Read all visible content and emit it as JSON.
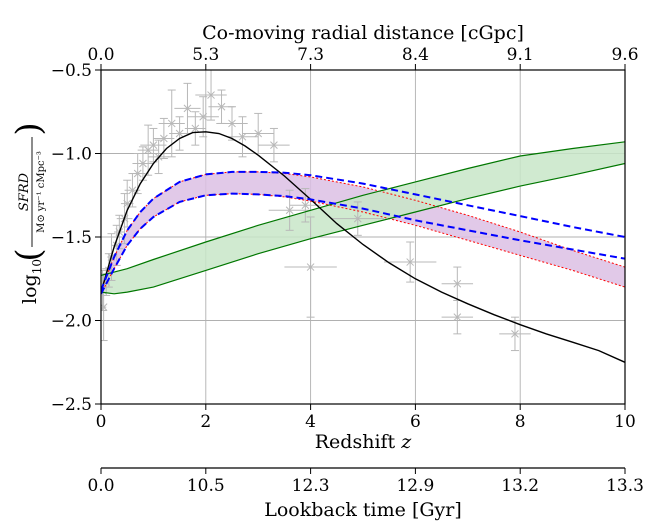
{
  "chart_data": {
    "type": "line",
    "grid": true,
    "xlim": [
      0,
      10
    ],
    "ylim": [
      -2.5,
      -0.5
    ],
    "xlabel": {
      "main": "Redshift ",
      "var": "z"
    },
    "ylabel": {
      "pre": "log",
      "sub": "10",
      "num": "SFRD",
      "den": "M⊙ yr⁻¹ cMpc⁻³"
    },
    "x_ticks": [
      0,
      2,
      4,
      6,
      8,
      10
    ],
    "x_tick_labels": [
      "0",
      "2",
      "4",
      "6",
      "8",
      "10"
    ],
    "y_ticks": [
      -2.5,
      -2.0,
      -1.5,
      -1.0,
      -0.5
    ],
    "y_tick_labels": [
      "−2.5",
      "−2.0",
      "−1.5",
      "−1.0",
      "−0.5"
    ],
    "top_axis": {
      "label": "Co-moving radial distance [cGpc]",
      "ticks": [
        0,
        2,
        4,
        6,
        8,
        10
      ],
      "tick_labels": [
        "0.0",
        "5.3",
        "7.3",
        "8.4",
        "9.1",
        "9.6"
      ]
    },
    "bottom_axis2": {
      "label": "Lookback time [Gyr]",
      "ticks": [
        0,
        2,
        4,
        6,
        8,
        10
      ],
      "tick_labels": [
        "0.0",
        "10.5",
        "12.3",
        "12.9",
        "13.2",
        "13.3"
      ]
    },
    "series": [
      {
        "style": "solid",
        "color": "#000000",
        "x": [
          0,
          0.25,
          0.5,
          0.75,
          1,
          1.25,
          1.5,
          1.75,
          2,
          2.25,
          2.5,
          2.75,
          3,
          3.5,
          4,
          4.5,
          5,
          5.5,
          6,
          6.5,
          7,
          7.5,
          8,
          8.5,
          9,
          9.5,
          10
        ],
        "y": [
          -1.83,
          -1.56,
          -1.34,
          -1.18,
          -1.06,
          -0.97,
          -0.91,
          -0.875,
          -0.87,
          -0.88,
          -0.91,
          -0.955,
          -1.01,
          -1.135,
          -1.275,
          -1.42,
          -1.545,
          -1.655,
          -1.75,
          -1.83,
          -1.9,
          -1.965,
          -2.025,
          -2.08,
          -2.13,
          -2.18,
          -2.25
        ]
      },
      {
        "style": "band",
        "fill": "#dcc0e4",
        "edge": "#ff0000",
        "x": [
          0,
          0.25,
          0.5,
          0.75,
          1,
          1.5,
          2,
          2.5,
          3,
          3.5,
          4,
          5,
          6,
          7,
          8,
          9,
          10
        ],
        "upper": [
          -1.82,
          -1.62,
          -1.46,
          -1.35,
          -1.27,
          -1.17,
          -1.125,
          -1.11,
          -1.11,
          -1.12,
          -1.14,
          -1.2,
          -1.28,
          -1.37,
          -1.47,
          -1.58,
          -1.68
        ],
        "lower": [
          -1.84,
          -1.69,
          -1.55,
          -1.45,
          -1.38,
          -1.29,
          -1.25,
          -1.24,
          -1.245,
          -1.26,
          -1.285,
          -1.35,
          -1.43,
          -1.52,
          -1.61,
          -1.7,
          -1.8
        ]
      },
      {
        "style": "dashed",
        "color": "#0000ff",
        "x": [
          0,
          0.25,
          0.5,
          0.75,
          1,
          1.5,
          2,
          2.5,
          3,
          3.5,
          4,
          5,
          6,
          7,
          8,
          9,
          10
        ],
        "y": [
          -1.82,
          -1.62,
          -1.46,
          -1.35,
          -1.27,
          -1.17,
          -1.125,
          -1.11,
          -1.11,
          -1.115,
          -1.13,
          -1.18,
          -1.245,
          -1.31,
          -1.375,
          -1.44,
          -1.5
        ]
      },
      {
        "style": "dashed",
        "color": "#0000ff",
        "x": [
          0,
          0.25,
          0.5,
          0.75,
          1,
          1.5,
          2,
          2.5,
          3,
          3.5,
          4,
          5,
          6,
          7,
          8,
          9,
          10
        ],
        "y": [
          -1.84,
          -1.69,
          -1.55,
          -1.45,
          -1.38,
          -1.29,
          -1.25,
          -1.24,
          -1.245,
          -1.255,
          -1.275,
          -1.33,
          -1.4,
          -1.46,
          -1.52,
          -1.575,
          -1.63
        ]
      },
      {
        "style": "band",
        "fill": "#c8e6c8",
        "edge": "#007700",
        "x": [
          0,
          0.25,
          0.5,
          1,
          2,
          3,
          4,
          5,
          6,
          7,
          8,
          9,
          10
        ],
        "upper": [
          -1.73,
          -1.71,
          -1.69,
          -1.635,
          -1.53,
          -1.43,
          -1.34,
          -1.25,
          -1.17,
          -1.09,
          -1.015,
          -0.97,
          -0.93
        ],
        "lower": [
          -1.83,
          -1.84,
          -1.83,
          -1.8,
          -1.7,
          -1.6,
          -1.51,
          -1.43,
          -1.35,
          -1.27,
          -1.195,
          -1.13,
          -1.06
        ]
      }
    ],
    "observations": {
      "color": "#b8b8b8",
      "points": [
        {
          "x": 0.03,
          "y": -1.82,
          "xerr": 0.03,
          "yerr": 0.12
        },
        {
          "x": 0.05,
          "y": -1.92,
          "xerr": 0.05,
          "yerr": 0.2
        },
        {
          "x": 0.1,
          "y": -1.77,
          "xerr": 0.06,
          "yerr": 0.08
        },
        {
          "x": 0.15,
          "y": -1.7,
          "xerr": 0.05,
          "yerr": 0.1
        },
        {
          "x": 0.2,
          "y": -1.62,
          "xerr": 0.08,
          "yerr": 0.14
        },
        {
          "x": 0.3,
          "y": -1.55,
          "xerr": 0.1,
          "yerr": 0.12
        },
        {
          "x": 0.35,
          "y": -1.47,
          "xerr": 0.1,
          "yerr": 0.1
        },
        {
          "x": 0.45,
          "y": -1.39,
          "xerr": 0.15,
          "yerr": 0.15
        },
        {
          "x": 0.5,
          "y": -1.3,
          "xerr": 0.12,
          "yerr": 0.14
        },
        {
          "x": 0.6,
          "y": -1.22,
          "xerr": 0.15,
          "yerr": 0.1
        },
        {
          "x": 0.7,
          "y": -1.12,
          "xerr": 0.15,
          "yerr": 0.12
        },
        {
          "x": 0.8,
          "y": -1.06,
          "xerr": 0.2,
          "yerr": 0.1
        },
        {
          "x": 0.9,
          "y": -0.98,
          "xerr": 0.2,
          "yerr": 0.15
        },
        {
          "x": 1.0,
          "y": -0.95,
          "xerr": 0.25,
          "yerr": 0.1
        },
        {
          "x": 1.1,
          "y": -1.02,
          "xerr": 0.2,
          "yerr": 0.1
        },
        {
          "x": 1.2,
          "y": -0.91,
          "xerr": 0.2,
          "yerr": 0.12
        },
        {
          "x": 1.35,
          "y": -0.82,
          "xerr": 0.25,
          "yerr": 0.2
        },
        {
          "x": 1.5,
          "y": -0.88,
          "xerr": 0.2,
          "yerr": 0.1
        },
        {
          "x": 1.65,
          "y": -0.73,
          "xerr": 0.25,
          "yerr": 0.15
        },
        {
          "x": 1.8,
          "y": -0.85,
          "xerr": 0.2,
          "yerr": 0.1
        },
        {
          "x": 1.95,
          "y": -0.78,
          "xerr": 0.3,
          "yerr": 0.12
        },
        {
          "x": 2.1,
          "y": -0.65,
          "xerr": 0.3,
          "yerr": 0.15
        },
        {
          "x": 2.3,
          "y": -0.72,
          "xerr": 0.25,
          "yerr": 0.1
        },
        {
          "x": 2.5,
          "y": -0.82,
          "xerr": 0.3,
          "yerr": 0.1
        },
        {
          "x": 2.7,
          "y": -0.9,
          "xerr": 0.3,
          "yerr": 0.12
        },
        {
          "x": 3.0,
          "y": -0.88,
          "xerr": 0.3,
          "yerr": 0.12
        },
        {
          "x": 3.3,
          "y": -0.95,
          "xerr": 0.3,
          "yerr": 0.1
        },
        {
          "x": 3.6,
          "y": -1.34,
          "xerr": 0.4,
          "yerr": 0.12
        },
        {
          "x": 3.9,
          "y": -1.31,
          "xerr": 0.3,
          "yerr": 0.1
        },
        {
          "x": 4.0,
          "y": -1.68,
          "xerr": 0.5,
          "yerr": 0.3
        },
        {
          "x": 4.9,
          "y": -1.39,
          "xerr": 0.5,
          "yerr": 0.1
        },
        {
          "x": 5.9,
          "y": -1.65,
          "xerr": 0.5,
          "yerr": 0.12
        },
        {
          "x": 6.8,
          "y": -1.78,
          "xerr": 0.3,
          "yerr": 0.1
        },
        {
          "x": 6.8,
          "y": -1.98,
          "xerr": 0.3,
          "yerr": 0.1
        },
        {
          "x": 7.9,
          "y": -2.08,
          "xerr": 0.3,
          "yerr": 0.1
        }
      ]
    }
  }
}
